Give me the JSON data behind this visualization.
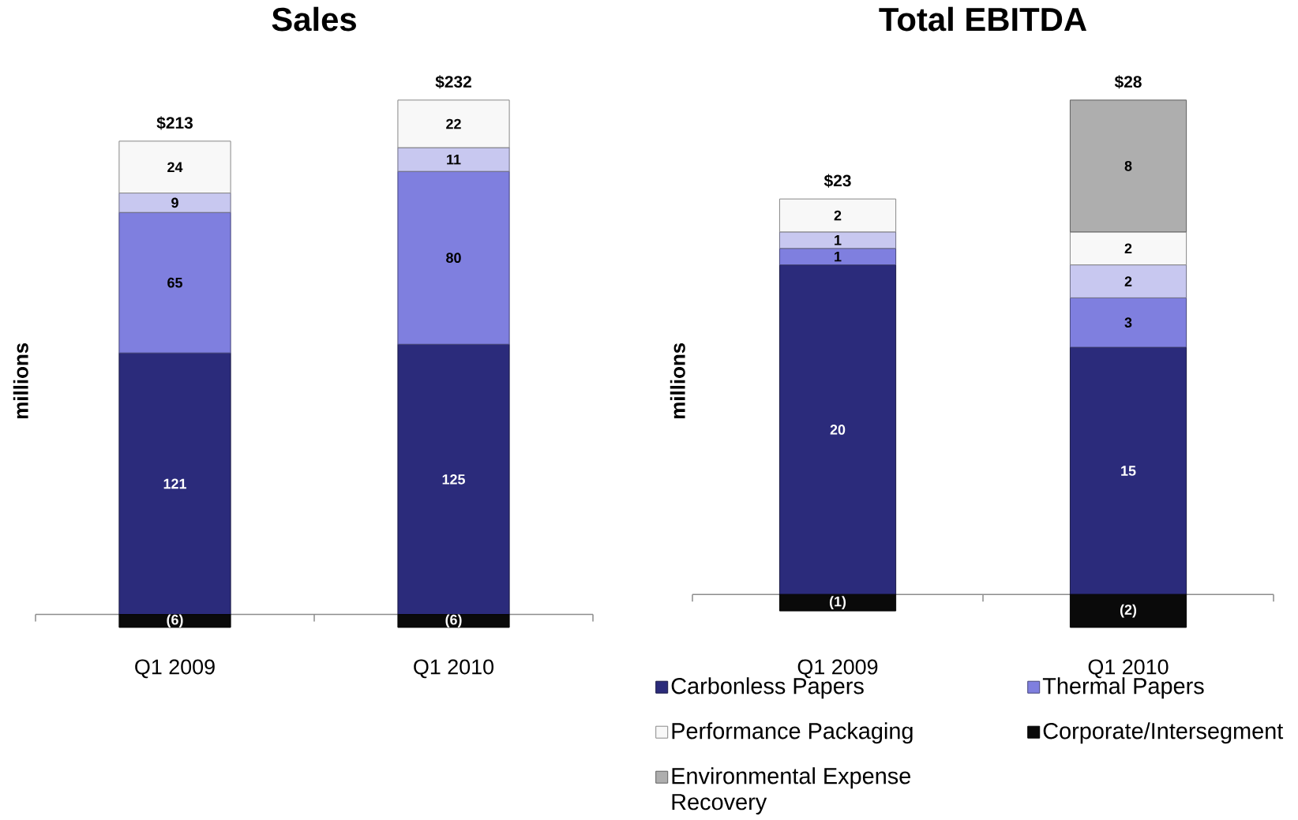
{
  "chart_data": [
    {
      "type": "bar",
      "title": "Sales",
      "ylabel": "millions",
      "categories": [
        "Q1 2009",
        "Q1 2010"
      ],
      "stacked": true,
      "tick_labels": "x",
      "series": [
        {
          "color": "#2b2b7b",
          "values": [
            121,
            125
          ],
          "value_labels": [
            "121",
            "125"
          ]
        },
        {
          "color": "#7f7fdf",
          "values": [
            65,
            80
          ],
          "value_labels": [
            "65",
            "80"
          ]
        },
        {
          "color": "#c8c8f0",
          "values": [
            9,
            11
          ],
          "value_labels": [
            "9",
            "11"
          ]
        },
        {
          "color": "#f8f8f8",
          "values": [
            24,
            22
          ],
          "value_labels": [
            "24",
            "22"
          ]
        },
        {
          "color": "#0a0a0a",
          "values": [
            -6,
            -6
          ],
          "value_labels": [
            "(6)",
            "(6)"
          ]
        }
      ],
      "totals": [
        "$213",
        "$232"
      ]
    },
    {
      "type": "bar",
      "title": "Total EBITDA",
      "ylabel": "millions",
      "categories": [
        "Q1 2009",
        "Q1 2010"
      ],
      "stacked": true,
      "tick_labels": "x",
      "legend": "bottom",
      "series": [
        {
          "name": "Carbonless Papers",
          "color": "#2b2b7b",
          "values": [
            20,
            15
          ],
          "value_labels": [
            "20",
            "15"
          ]
        },
        {
          "name": "Thermal Papers",
          "color": "#7f7fdf",
          "values": [
            1,
            3
          ],
          "value_labels": [
            "1",
            "3"
          ]
        },
        {
          "color": "#c8c8f0",
          "values": [
            1,
            2
          ],
          "value_labels": [
            "1",
            "2"
          ]
        },
        {
          "name": "Performance Packaging",
          "color": "#f8f8f8",
          "values": [
            2,
            2
          ],
          "value_labels": [
            "2",
            "2"
          ]
        },
        {
          "name": "Corporate/Intersegment",
          "color": "#0a0a0a",
          "values": [
            -1,
            -2
          ],
          "value_labels": [
            "(1)",
            "(2)"
          ]
        },
        {
          "name": "Environmental Expense Recovery",
          "color": "#aeaeae",
          "values": [
            null,
            8
          ],
          "value_labels": [
            null,
            "8"
          ]
        }
      ],
      "totals": [
        "$23",
        "$28"
      ]
    }
  ]
}
